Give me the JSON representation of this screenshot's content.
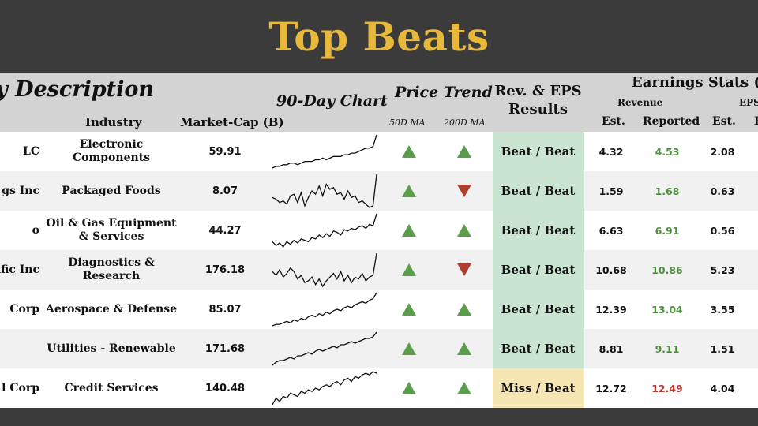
{
  "title": "Top Beats",
  "headers": {
    "description": "y Description",
    "industry": "Industry",
    "market_cap": "Market-Cap (B)",
    "chart": "90-Day Chart",
    "price_trend": "Price Trend",
    "ma50": "50D MA",
    "ma200": "200D MA",
    "results": "Rev. & EPS Results",
    "earnings_stats": "Earnings Stats (B)",
    "revenue": "Revenue",
    "eps": "EPS",
    "est": "Est.",
    "reported": "Reported",
    "est_eps": "Est.",
    "reported_eps_cut": "R"
  },
  "colors": {
    "up": "#5a9e4b",
    "down": "#b0402e",
    "beat_bg": "#c9e4d1",
    "miss_bg": "#f6e6b4",
    "beat_text": "#4e8f3e",
    "miss_text": "#c0392b",
    "banner": "#3b3b3b",
    "title": "#e8b83a"
  },
  "rows": [
    {
      "company": "LC",
      "industry": "Electronic Components",
      "market_cap": "59.91",
      "trend_50": "up",
      "trend_200": "up",
      "result": "Beat / Beat",
      "result_type": "beat",
      "rev_est": "4.32",
      "rev_rep": "4.53",
      "rev_status": "beat",
      "eps_est": "2.08",
      "chart": [
        10,
        11,
        11,
        12,
        12,
        13,
        13,
        12,
        13,
        14,
        14,
        14,
        15,
        15,
        16,
        15,
        16,
        17,
        17,
        17,
        18,
        18,
        19,
        19,
        20,
        21,
        22,
        22,
        23,
        30
      ]
    },
    {
      "company": "gs Inc",
      "industry": "Packaged Foods",
      "market_cap": "8.07",
      "trend_50": "up",
      "trend_200": "down",
      "result": "Beat / Beat",
      "result_type": "beat",
      "rev_est": "1.59",
      "rev_rep": "1.68",
      "rev_status": "beat",
      "eps_est": "0.63",
      "chart": [
        20,
        19,
        17,
        18,
        16,
        21,
        22,
        17,
        23,
        15,
        20,
        24,
        22,
        27,
        21,
        28,
        25,
        26,
        22,
        23,
        19,
        24,
        20,
        21,
        17,
        18,
        16,
        14,
        15,
        34
      ]
    },
    {
      "company": "o",
      "industry": "Oil & Gas Equipment & Services",
      "market_cap": "44.27",
      "trend_50": "up",
      "trend_200": "up",
      "result": "Beat / Beat",
      "result_type": "beat",
      "rev_est": "6.63",
      "rev_rep": "6.91",
      "rev_status": "beat",
      "eps_est": "0.56",
      "chart": [
        12,
        9,
        11,
        8,
        12,
        10,
        13,
        11,
        14,
        13,
        12,
        15,
        14,
        17,
        15,
        18,
        16,
        20,
        19,
        17,
        21,
        20,
        22,
        21,
        23,
        24,
        22,
        25,
        24,
        33
      ]
    },
    {
      "company": "ific Inc",
      "industry": "Diagnostics & Research",
      "market_cap": "176.18",
      "trend_50": "up",
      "trend_200": "down",
      "result": "Beat / Beat",
      "result_type": "beat",
      "rev_est": "10.68",
      "rev_rep": "10.86",
      "rev_status": "beat",
      "eps_est": "5.23",
      "chart": [
        22,
        20,
        23,
        19,
        21,
        24,
        22,
        18,
        20,
        16,
        17,
        19,
        15,
        18,
        14,
        17,
        19,
        21,
        18,
        22,
        17,
        20,
        16,
        19,
        18,
        21,
        17,
        19,
        20,
        32
      ]
    },
    {
      "company": "Corp",
      "industry": "Aerospace & Defense",
      "market_cap": "85.07",
      "trend_50": "up",
      "trend_200": "up",
      "result": "Beat / Beat",
      "result_type": "beat",
      "rev_est": "12.39",
      "rev_rep": "13.04",
      "rev_status": "beat",
      "eps_est": "3.55",
      "chart": [
        10,
        11,
        11,
        12,
        13,
        12,
        14,
        13,
        15,
        14,
        16,
        17,
        16,
        18,
        17,
        19,
        18,
        20,
        21,
        20,
        22,
        23,
        22,
        24,
        25,
        26,
        25,
        27,
        28,
        32
      ]
    },
    {
      "company": "",
      "industry": "Utilities - Renewable",
      "market_cap": "171.68",
      "trend_50": "up",
      "trend_200": "up",
      "result": "Beat / Beat",
      "result_type": "beat",
      "rev_est": "8.81",
      "rev_rep": "9.11",
      "rev_status": "beat",
      "eps_est": "1.51",
      "chart": [
        9,
        11,
        12,
        12,
        13,
        14,
        13,
        15,
        15,
        16,
        17,
        16,
        18,
        19,
        18,
        19,
        20,
        21,
        20,
        22,
        22,
        23,
        24,
        23,
        24,
        25,
        26,
        26,
        27,
        30
      ]
    },
    {
      "company": "l Corp",
      "industry": "Credit Services",
      "market_cap": "140.48",
      "trend_50": "up",
      "trend_200": "up",
      "result": "Miss / Beat",
      "result_type": "miss",
      "rev_est": "12.72",
      "rev_rep": "12.49",
      "rev_status": "miss",
      "eps_est": "4.04",
      "chart": [
        8,
        12,
        10,
        13,
        12,
        15,
        14,
        13,
        16,
        15,
        17,
        16,
        18,
        17,
        19,
        20,
        19,
        21,
        22,
        20,
        23,
        24,
        22,
        25,
        24,
        26,
        27,
        26,
        28,
        27
      ]
    }
  ]
}
